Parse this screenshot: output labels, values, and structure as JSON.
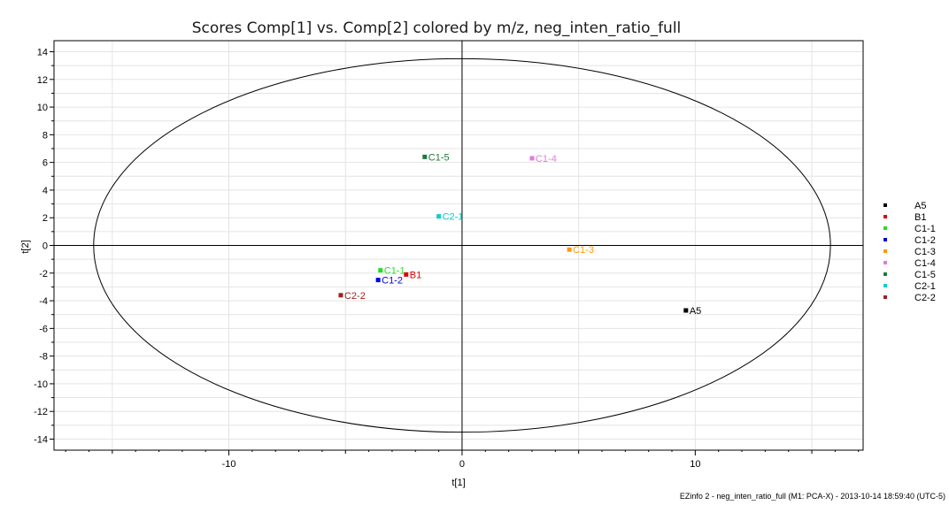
{
  "chart_data": {
    "type": "scatter",
    "title": "Scores Comp[1] vs. Comp[2] colored by m/z, neg_inten_ratio_full",
    "xlabel": "t[1]",
    "ylabel": "t[2]",
    "xlim": [
      -17.5,
      17.2
    ],
    "ylim": [
      -14.8,
      14.8
    ],
    "x_ticks": [
      -10,
      0,
      10
    ],
    "y_ticks": [
      -14,
      -12,
      -10,
      -8,
      -6,
      -4,
      -2,
      0,
      2,
      4,
      6,
      8,
      10,
      12,
      14
    ],
    "grid": true,
    "legend_position": "right",
    "ellipse": {
      "cx": 0,
      "cy": 0,
      "rx": 15.8,
      "ry": 13.5
    },
    "series": [
      {
        "name": "A5",
        "color": "#000000",
        "x": 9.6,
        "y": -4.7
      },
      {
        "name": "B1",
        "color": "#e00000",
        "x": -2.4,
        "y": -2.1
      },
      {
        "name": "C1-1",
        "color": "#22dd22",
        "x": -3.5,
        "y": -1.8
      },
      {
        "name": "C1-2",
        "color": "#0000e0",
        "x": -3.6,
        "y": -2.5
      },
      {
        "name": "C1-3",
        "color": "#ff9900",
        "x": 4.6,
        "y": -0.3
      },
      {
        "name": "C1-4",
        "color": "#e07be0",
        "x": 3.0,
        "y": 6.3
      },
      {
        "name": "C1-5",
        "color": "#1e7a3c",
        "x": -1.6,
        "y": 6.4
      },
      {
        "name": "C2-1",
        "color": "#11cccc",
        "x": -1.0,
        "y": 2.1
      },
      {
        "name": "C2-2",
        "color": "#a02020",
        "x": -5.2,
        "y": -3.6
      }
    ]
  },
  "footer": "EZinfo 2 - neg_inten_ratio_full (M1: PCA-X) - 2013-10-14 18:59:40 (UTC-5)"
}
